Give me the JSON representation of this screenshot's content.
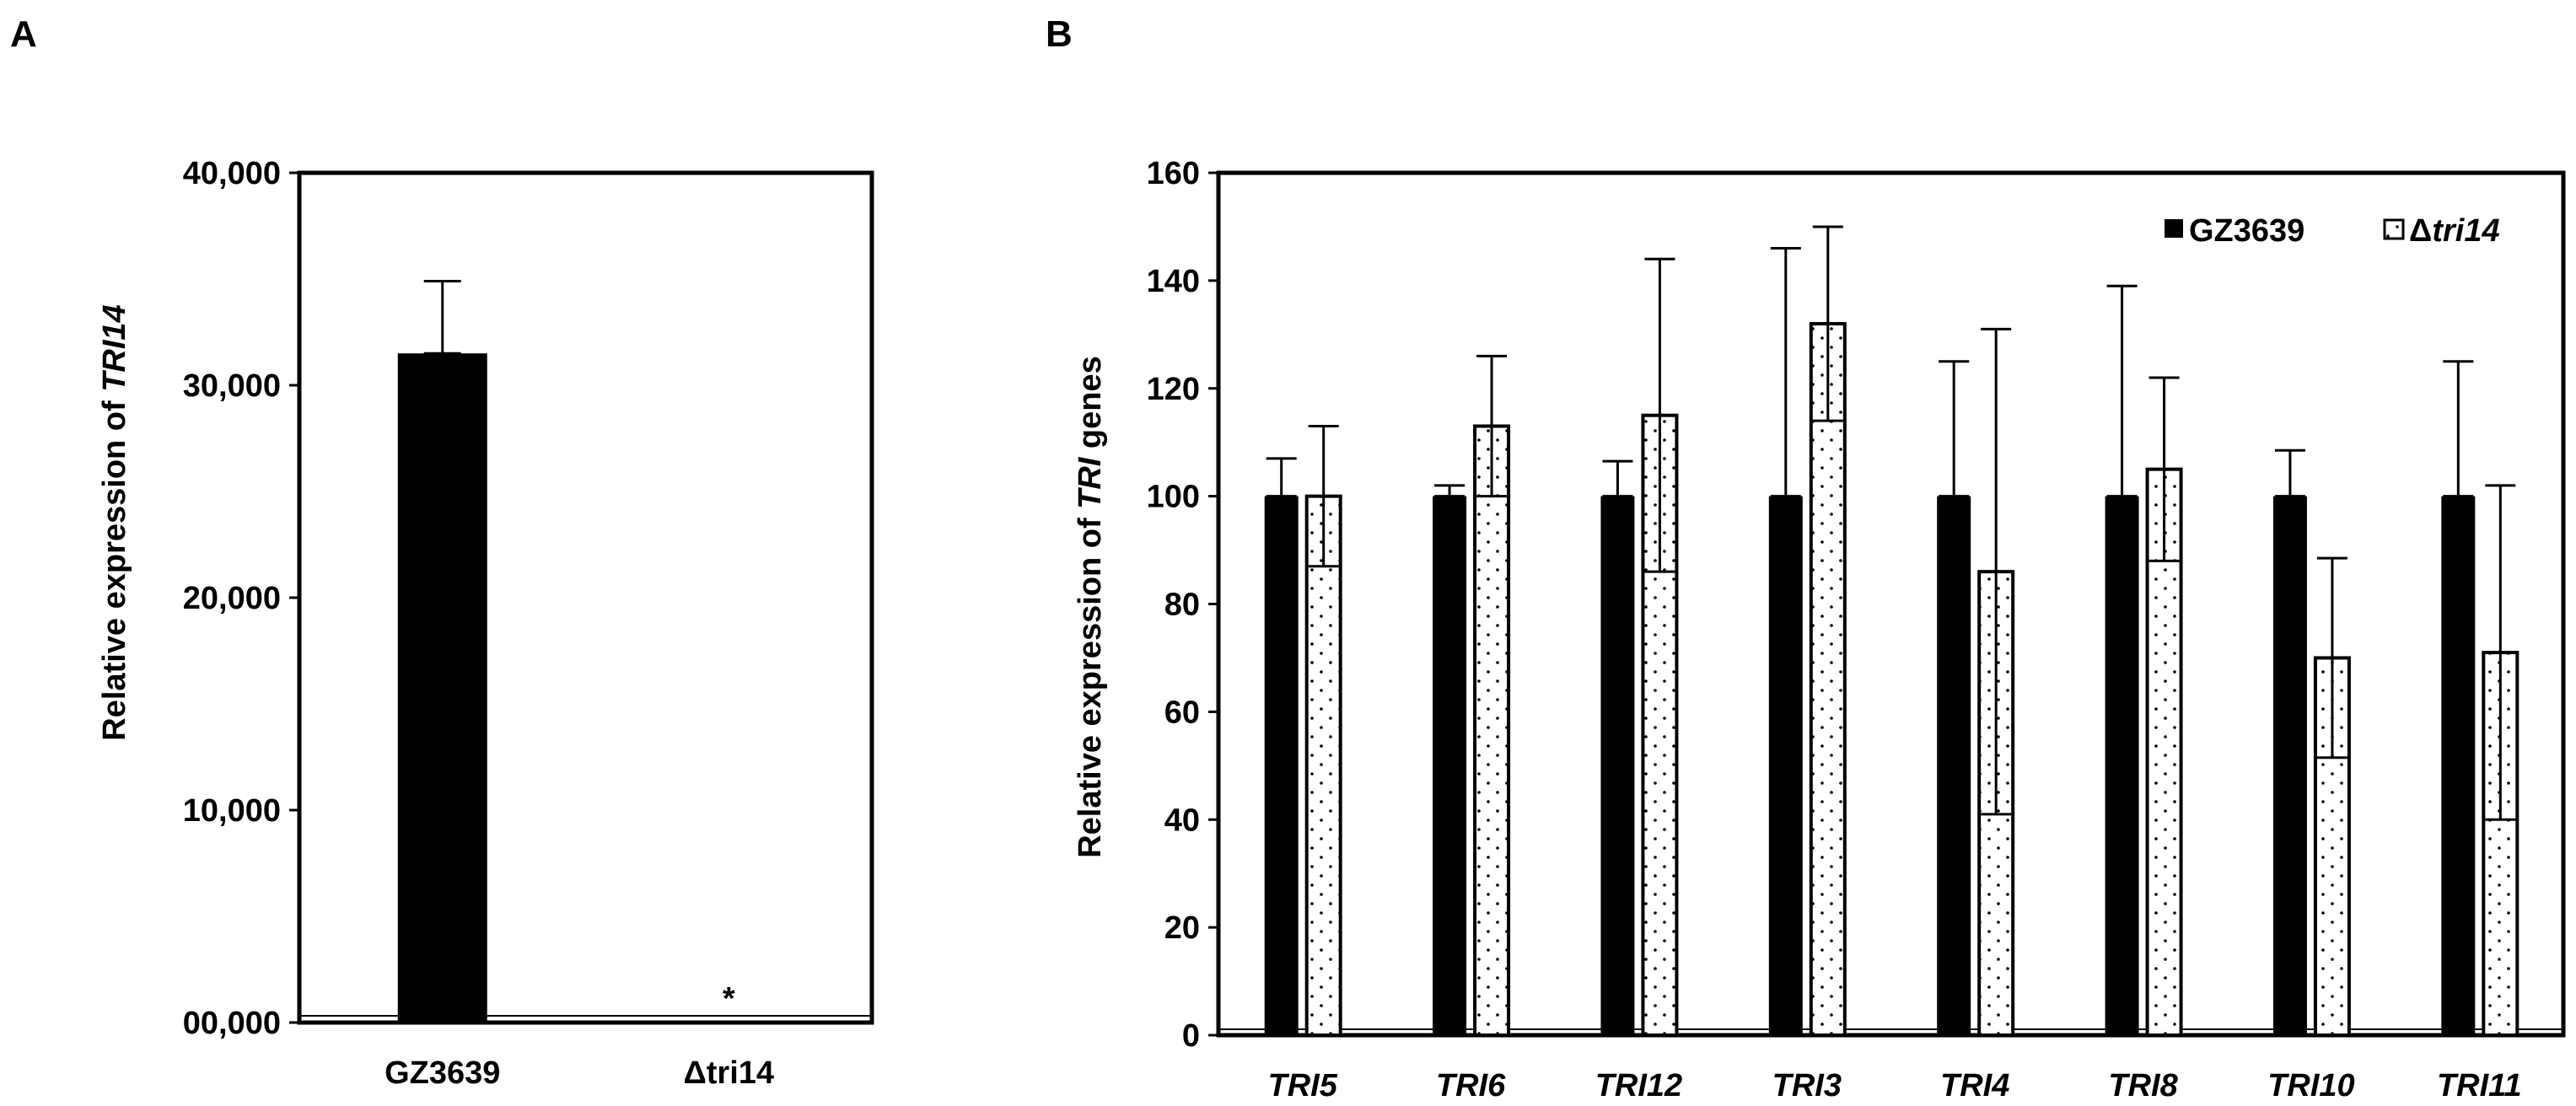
{
  "colors": {
    "wildtype": "#000000",
    "mutant_fill": "#ffffff",
    "mutant_dots": "#000000",
    "axis": "#000000"
  },
  "chart_data": [
    {
      "panel": "A",
      "type": "bar",
      "categories": [
        "GZ3639",
        "Δtri14"
      ],
      "values": [
        31500,
        0
      ],
      "errors": [
        3400,
        0
      ],
      "annotations": [
        {
          "category": "Δtri14",
          "text": "*"
        }
      ],
      "ylabel_pre": "Relative expression of ",
      "ylabel_italic": "TRI14",
      "ylim": [
        0,
        40000
      ],
      "yticks": [
        {
          "value": 0,
          "label": "00,000"
        },
        {
          "value": 10000,
          "label": "10,000"
        },
        {
          "value": 20000,
          "label": "20,000"
        },
        {
          "value": 30000,
          "label": "30,000"
        },
        {
          "value": 40000,
          "label": "40,000"
        }
      ]
    },
    {
      "panel": "B",
      "type": "bar",
      "categories": [
        "TRI5",
        "TRI6",
        "TRI12",
        "TRI3",
        "TRI4",
        "TRI8",
        "TRI10",
        "TRI11"
      ],
      "series": [
        {
          "name": "GZ3639",
          "values": [
            100,
            100,
            100,
            100,
            100,
            100,
            100,
            100
          ],
          "errors": [
            7,
            2,
            6.5,
            46,
            25,
            39,
            8.5,
            25
          ]
        },
        {
          "name": "Δtri14",
          "values": [
            100,
            113,
            115,
            132,
            86,
            105,
            70,
            71
          ],
          "errors": [
            13,
            13,
            29,
            18,
            45,
            17,
            18.5,
            31
          ]
        }
      ],
      "legend": [
        "GZ3639",
        "Δtri14"
      ],
      "legend_position": "top-right",
      "ylabel_pre": "Relative expression of ",
      "ylabel_italic": "TRI",
      "ylabel_post": " genes",
      "ylim": [
        0,
        160
      ],
      "yticks": [
        {
          "value": 0,
          "label": "0"
        },
        {
          "value": 20,
          "label": "20"
        },
        {
          "value": 40,
          "label": "40"
        },
        {
          "value": 60,
          "label": "60"
        },
        {
          "value": 80,
          "label": "80"
        },
        {
          "value": 100,
          "label": "100"
        },
        {
          "value": 120,
          "label": "120"
        },
        {
          "value": 140,
          "label": "140"
        },
        {
          "value": 160,
          "label": "160"
        }
      ]
    }
  ]
}
